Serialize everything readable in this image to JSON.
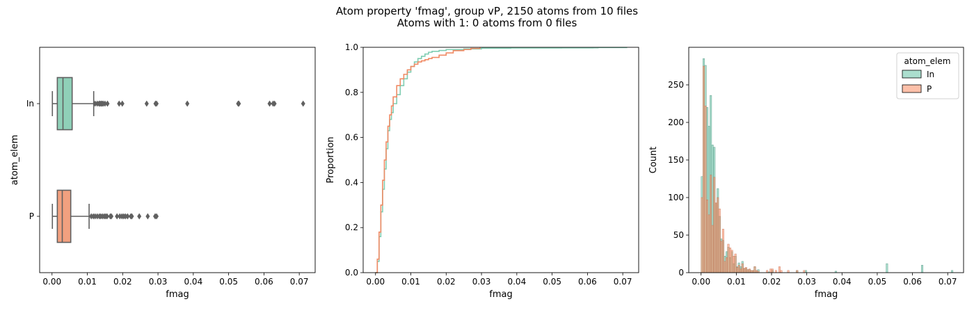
{
  "figure": {
    "title_line1": "Atom property 'fmag', group vP, 2150 atoms from 10 files",
    "title_line2": "Atoms with 1: 0 atoms from 0 files"
  },
  "colors": {
    "In": "#8fd0b8",
    "P": "#f2a07f",
    "In_line": "#7fcdb2",
    "P_line": "#f08a64",
    "box_edge": "#606060"
  },
  "chart_data": [
    {
      "type": "boxplot",
      "orientation": "horizontal",
      "xlabel": "fmag",
      "ylabel": "atom_elem",
      "categories": [
        "In",
        "P"
      ],
      "xlim": [
        -0.0035,
        0.0745
      ],
      "xticks": [
        0.0,
        0.01,
        0.02,
        0.03,
        0.04,
        0.05,
        0.06,
        0.07
      ],
      "xtick_labels": [
        "0.00",
        "0.01",
        "0.02",
        "0.03",
        "0.04",
        "0.05",
        "0.06",
        "0.07"
      ],
      "boxes": [
        {
          "name": "In",
          "whisker_low": 0.0001,
          "q1": 0.0015,
          "median": 0.0031,
          "q3": 0.0057,
          "whisker_high": 0.0118,
          "outliers": [
            0.0122,
            0.0128,
            0.0133,
            0.0136,
            0.0139,
            0.0142,
            0.0145,
            0.015,
            0.0157,
            0.019,
            0.0199,
            0.0268,
            0.0293,
            0.0296,
            0.0383,
            0.0527,
            0.0529,
            0.0616,
            0.0626,
            0.063,
            0.0711
          ]
        },
        {
          "name": "P",
          "whisker_low": 0.0001,
          "q1": 0.0015,
          "median": 0.0029,
          "q3": 0.0053,
          "whisker_high": 0.0105,
          "outliers": [
            0.0111,
            0.0117,
            0.0122,
            0.0128,
            0.0134,
            0.0138,
            0.0143,
            0.0148,
            0.0152,
            0.0156,
            0.0165,
            0.0168,
            0.0184,
            0.0192,
            0.0198,
            0.0203,
            0.0208,
            0.0214,
            0.0223,
            0.0226,
            0.0247,
            0.0271,
            0.0292,
            0.0296
          ]
        }
      ]
    },
    {
      "type": "line",
      "subtype": "ecdf",
      "xlabel": "fmag",
      "ylabel": "Proportion",
      "xlim": [
        -0.0035,
        0.0745
      ],
      "ylim": [
        0,
        1
      ],
      "xticks": [
        0.0,
        0.01,
        0.02,
        0.03,
        0.04,
        0.05,
        0.06,
        0.07
      ],
      "xtick_labels": [
        "0.00",
        "0.01",
        "0.02",
        "0.03",
        "0.04",
        "0.05",
        "0.06",
        "0.07"
      ],
      "yticks": [
        0.0,
        0.2,
        0.4,
        0.6,
        0.8,
        1.0
      ],
      "ytick_labels": [
        "0.0",
        "0.2",
        "0.4",
        "0.6",
        "0.8",
        "1.0"
      ],
      "series": [
        {
          "name": "In",
          "x": [
            0,
            0.0005,
            0.001,
            0.0015,
            0.002,
            0.0025,
            0.003,
            0.0035,
            0.004,
            0.0045,
            0.005,
            0.006,
            0.007,
            0.008,
            0.009,
            0.01,
            0.011,
            0.012,
            0.013,
            0.014,
            0.015,
            0.016,
            0.018,
            0.02,
            0.025,
            0.03,
            0.0383,
            0.0527,
            0.0616,
            0.063,
            0.0711
          ],
          "y": [
            0,
            0.05,
            0.16,
            0.27,
            0.37,
            0.46,
            0.55,
            0.63,
            0.68,
            0.71,
            0.75,
            0.79,
            0.83,
            0.86,
            0.89,
            0.915,
            0.935,
            0.95,
            0.96,
            0.97,
            0.978,
            0.982,
            0.986,
            0.99,
            0.993,
            0.996,
            0.997,
            0.9975,
            0.998,
            0.999,
            1.0
          ]
        },
        {
          "name": "P",
          "x": [
            0,
            0.0005,
            0.001,
            0.0015,
            0.002,
            0.0025,
            0.003,
            0.0035,
            0.004,
            0.0045,
            0.005,
            0.006,
            0.007,
            0.008,
            0.009,
            0.01,
            0.011,
            0.012,
            0.013,
            0.014,
            0.015,
            0.016,
            0.018,
            0.02,
            0.022,
            0.025,
            0.027,
            0.0296
          ],
          "y": [
            0,
            0.06,
            0.18,
            0.3,
            0.41,
            0.5,
            0.58,
            0.65,
            0.7,
            0.74,
            0.78,
            0.83,
            0.86,
            0.88,
            0.9,
            0.915,
            0.925,
            0.935,
            0.94,
            0.945,
            0.95,
            0.955,
            0.965,
            0.975,
            0.985,
            0.99,
            0.995,
            1.0
          ]
        }
      ]
    },
    {
      "type": "bar",
      "subtype": "histogram",
      "xlabel": "fmag",
      "ylabel": "Count",
      "xlim": [
        -0.0035,
        0.0745
      ],
      "ylim": [
        0,
        300
      ],
      "bin_width": 0.001,
      "xticks": [
        0.0,
        0.01,
        0.02,
        0.03,
        0.04,
        0.05,
        0.06,
        0.07
      ],
      "xtick_labels": [
        "0.00",
        "0.01",
        "0.02",
        "0.03",
        "0.04",
        "0.05",
        "0.06",
        "0.07"
      ],
      "yticks": [
        0,
        50,
        100,
        150,
        200,
        250
      ],
      "ytick_labels": [
        "0",
        "50",
        "100",
        "150",
        "200",
        "250"
      ],
      "legend": {
        "title": "atom_elem",
        "position": "upper right",
        "entries": [
          "In",
          "P"
        ]
      },
      "series": [
        {
          "name": "In",
          "bin_starts": [
            0.0,
            0.0005,
            0.001,
            0.0015,
            0.002,
            0.0025,
            0.003,
            0.0035,
            0.004,
            0.0045,
            0.005,
            0.0055,
            0.006,
            0.0065,
            0.007,
            0.0075,
            0.008,
            0.0085,
            0.009,
            0.0095,
            0.01,
            0.0105,
            0.011,
            0.0115,
            0.012,
            0.0125,
            0.013,
            0.0135,
            0.014,
            0.0145,
            0.015,
            0.0155,
            0.016,
            0.019,
            0.02,
            0.027,
            0.0295,
            0.038,
            0.0525,
            0.0625,
            0.071
          ],
          "values": [
            128,
            285,
            276,
            220,
            195,
            236,
            170,
            167,
            92,
            112,
            75,
            45,
            43,
            22,
            28,
            34,
            20,
            28,
            12,
            22,
            8,
            13,
            8,
            15,
            5,
            6,
            4,
            4,
            3,
            3,
            8,
            2,
            4,
            1,
            3,
            3,
            3,
            2,
            12,
            10,
            3
          ]
        },
        {
          "name": "P",
          "bin_starts": [
            0.0,
            0.0005,
            0.001,
            0.0015,
            0.002,
            0.0025,
            0.003,
            0.0035,
            0.004,
            0.0045,
            0.005,
            0.0055,
            0.006,
            0.0065,
            0.007,
            0.0075,
            0.008,
            0.0085,
            0.009,
            0.0095,
            0.01,
            0.0105,
            0.011,
            0.0115,
            0.012,
            0.0125,
            0.013,
            0.0135,
            0.014,
            0.0145,
            0.015,
            0.0155,
            0.016,
            0.0185,
            0.0195,
            0.02,
            0.021,
            0.022,
            0.0225,
            0.0245,
            0.027,
            0.029
          ],
          "values": [
            100,
            275,
            222,
            97,
            77,
            130,
            63,
            127,
            93,
            100,
            85,
            42,
            58,
            15,
            20,
            38,
            33,
            30,
            22,
            25,
            7,
            10,
            5,
            12,
            6,
            7,
            4,
            5,
            3,
            3,
            8,
            3,
            2,
            3,
            5,
            5,
            3,
            8,
            3,
            3,
            3,
            3
          ]
        }
      ]
    }
  ]
}
